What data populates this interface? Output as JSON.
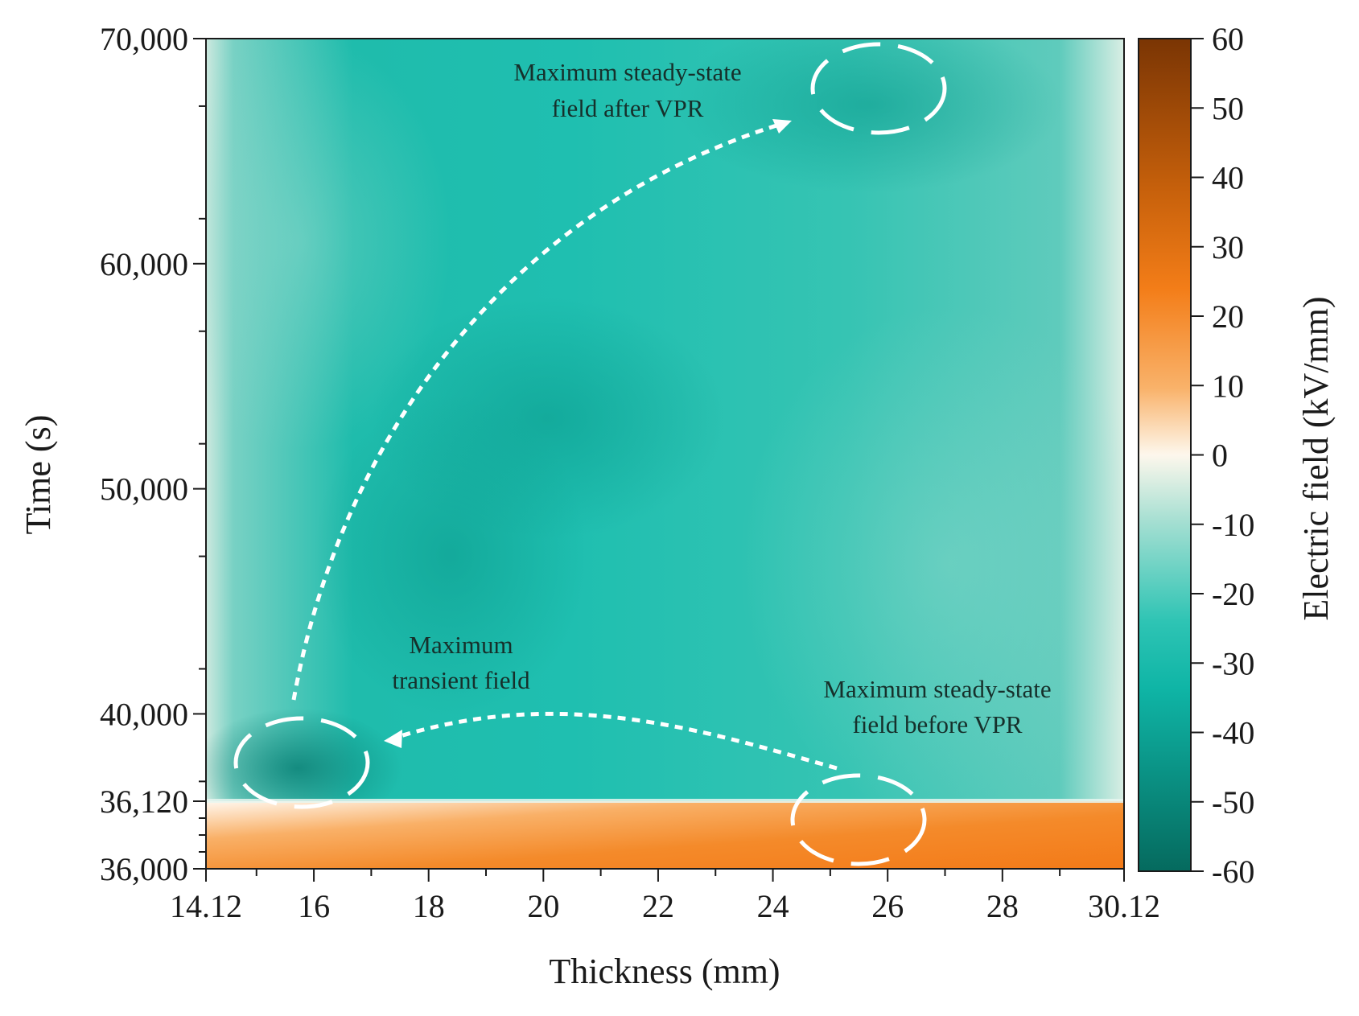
{
  "chart_data": {
    "type": "heatmap",
    "title": "",
    "xlabel": "Thickness (mm)",
    "ylabel": "Time (s)",
    "colorbar_label": "Electric field (kV/mm)",
    "xlim": [
      14.12,
      30.12
    ],
    "y_ticks": [
      "36,000",
      "36,120",
      "40,000",
      "50,000",
      "60,000",
      "70,000"
    ],
    "y_tick_values": [
      36000,
      36120,
      40000,
      50000,
      60000,
      70000
    ],
    "y_axis_note": "broken scale: 36,000-36,120 band expanded",
    "x_ticks": [
      "14.12",
      "16",
      "18",
      "20",
      "22",
      "24",
      "26",
      "28",
      "30.12"
    ],
    "x_tick_values": [
      14.12,
      16,
      18,
      20,
      22,
      24,
      26,
      28,
      30.12
    ],
    "colorbar_ticks": [
      "60",
      "50",
      "40",
      "30",
      "20",
      "10",
      "0",
      "-10",
      "-20",
      "-30",
      "-40",
      "-50",
      "-60"
    ],
    "colorbar_tick_values": [
      60,
      50,
      40,
      30,
      20,
      10,
      0,
      -10,
      -20,
      -30,
      -40,
      -50,
      -60
    ],
    "clim": [
      -60,
      60
    ],
    "colormap": {
      "negative_end": "#066b60",
      "mid_negative": "#0fbfb0",
      "zero": "#fdf7ec",
      "mid_positive": "#f7932a",
      "positive_end": "#7a3504"
    },
    "regions": [
      {
        "name": "before VPR (36,000-36,120 s)",
        "approx_field_kV_per_mm": 30
      },
      {
        "name": "after VPR (36,120-70,000 s)",
        "approx_field_kV_per_mm": -28
      }
    ],
    "annotations": [
      {
        "text_lines": [
          "Maximum steady-state",
          "field after VPR"
        ],
        "x": 25.8,
        "y": 67500
      },
      {
        "text_lines": [
          "Maximum",
          "transient field"
        ],
        "x": 15.8,
        "y": 36350
      },
      {
        "text_lines": [
          "Maximum steady-state",
          "field before VPR"
        ],
        "x": 25.6,
        "y": 36060
      }
    ]
  }
}
